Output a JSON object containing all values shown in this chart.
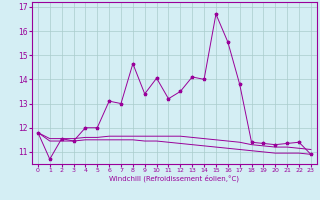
{
  "xlabel": "Windchill (Refroidissement éolien,°C)",
  "ylabel": "",
  "x": [
    0,
    1,
    2,
    3,
    4,
    5,
    6,
    7,
    8,
    9,
    10,
    11,
    12,
    13,
    14,
    15,
    16,
    17,
    18,
    19,
    20,
    21,
    22,
    23
  ],
  "y_main": [
    11.8,
    10.7,
    11.55,
    11.45,
    12.0,
    12.0,
    13.1,
    13.0,
    14.65,
    13.4,
    14.05,
    13.2,
    13.5,
    14.1,
    14.0,
    16.7,
    15.55,
    13.8,
    11.4,
    11.35,
    11.3,
    11.35,
    11.4,
    10.9
  ],
  "y_line1": [
    11.8,
    11.55,
    11.55,
    11.55,
    11.6,
    11.6,
    11.65,
    11.65,
    11.65,
    11.65,
    11.65,
    11.65,
    11.65,
    11.6,
    11.55,
    11.5,
    11.45,
    11.4,
    11.3,
    11.25,
    11.2,
    11.2,
    11.15,
    11.1
  ],
  "y_line2": [
    11.8,
    11.45,
    11.45,
    11.45,
    11.5,
    11.5,
    11.5,
    11.5,
    11.5,
    11.45,
    11.45,
    11.4,
    11.35,
    11.3,
    11.25,
    11.2,
    11.15,
    11.1,
    11.05,
    11.0,
    10.95,
    10.95,
    10.95,
    10.9
  ],
  "line_color": "#990099",
  "bg_color": "#d4eef4",
  "grid_color": "#aacccc",
  "ylim": [
    10.5,
    17.2
  ],
  "yticks": [
    11,
    12,
    13,
    14,
    15,
    16,
    17
  ],
  "xticks": [
    0,
    1,
    2,
    3,
    4,
    5,
    6,
    7,
    8,
    9,
    10,
    11,
    12,
    13,
    14,
    15,
    16,
    17,
    18,
    19,
    20,
    21,
    22,
    23
  ]
}
